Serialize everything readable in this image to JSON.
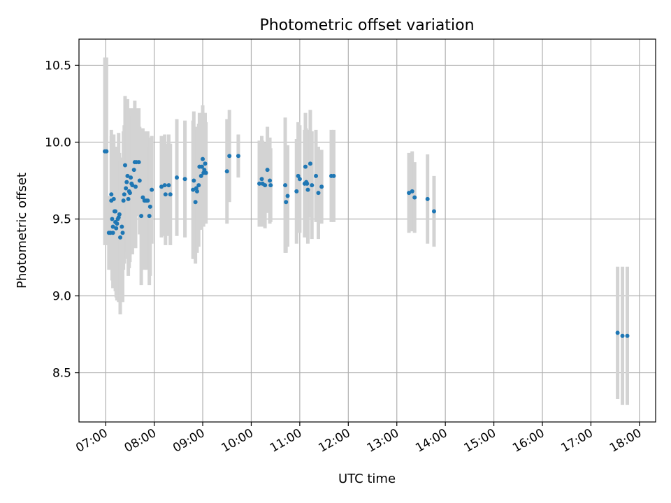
{
  "chart_data": {
    "type": "scatter",
    "title": "Photometric offset variation",
    "xlabel": "UTC time",
    "ylabel": "Photometric offset",
    "x_ticks": [
      "07:00",
      "08:00",
      "09:00",
      "10:00",
      "11:00",
      "12:00",
      "13:00",
      "14:00",
      "15:00",
      "16:00",
      "17:00",
      "18:00"
    ],
    "y_ticks": [
      "8.5",
      "9.0",
      "9.5",
      "10.0",
      "10.5"
    ],
    "xlim": [
      "06:27",
      "18:20"
    ],
    "ylim": [
      8.18,
      10.67
    ],
    "grid": true,
    "colors": {
      "points": "#1f77b4",
      "errorbars": "#d3d3d3",
      "grid": "#b0b0b0"
    },
    "points": [
      {
        "x": "06:59",
        "y": 9.94,
        "err": 0.61
      },
      {
        "x": "07:01",
        "y": 9.94,
        "err": 0.61
      },
      {
        "x": "07:04",
        "y": 9.41,
        "err": 0.24
      },
      {
        "x": "07:06",
        "y": 9.41,
        "err": 0.24
      },
      {
        "x": "07:07",
        "y": 9.62,
        "err": 0.42
      },
      {
        "x": "07:07",
        "y": 9.66,
        "err": 0.42
      },
      {
        "x": "07:08",
        "y": 9.5,
        "err": 0.4
      },
      {
        "x": "07:09",
        "y": 9.45,
        "err": 0.4
      },
      {
        "x": "07:09",
        "y": 9.41,
        "err": 0.3
      },
      {
        "x": "07:10",
        "y": 9.63,
        "err": 0.42
      },
      {
        "x": "07:11",
        "y": 9.55,
        "err": 0.42
      },
      {
        "x": "07:12",
        "y": 9.55,
        "err": 0.36
      },
      {
        "x": "07:12",
        "y": 9.48,
        "err": 0.45
      },
      {
        "x": "07:13",
        "y": 9.44,
        "err": 0.45
      },
      {
        "x": "07:14",
        "y": 9.47,
        "err": 0.5
      },
      {
        "x": "07:15",
        "y": 9.5,
        "err": 0.45
      },
      {
        "x": "07:16",
        "y": 9.51,
        "err": 0.55
      },
      {
        "x": "07:17",
        "y": 9.53,
        "err": 0.4
      },
      {
        "x": "07:18",
        "y": 9.38,
        "err": 0.5
      },
      {
        "x": "07:20",
        "y": 9.45,
        "err": 0.45
      },
      {
        "x": "07:21",
        "y": 9.41,
        "err": 0.45
      },
      {
        "x": "07:22",
        "y": 9.62,
        "err": 0.45
      },
      {
        "x": "07:23",
        "y": 9.66,
        "err": 0.45
      },
      {
        "x": "07:24",
        "y": 9.85,
        "err": 0.45
      },
      {
        "x": "07:25",
        "y": 9.7,
        "err": 0.45
      },
      {
        "x": "07:26",
        "y": 9.74,
        "err": 0.5
      },
      {
        "x": "07:27",
        "y": 9.78,
        "err": 0.5
      },
      {
        "x": "07:28",
        "y": 9.63,
        "err": 0.5
      },
      {
        "x": "07:29",
        "y": 9.68,
        "err": 0.5
      },
      {
        "x": "07:30",
        "y": 9.67,
        "err": 0.45
      },
      {
        "x": "07:31",
        "y": 9.77,
        "err": 0.45
      },
      {
        "x": "07:32",
        "y": 9.73,
        "err": 0.45
      },
      {
        "x": "07:33",
        "y": 9.72,
        "err": 0.45
      },
      {
        "x": "07:35",
        "y": 9.82,
        "err": 0.4
      },
      {
        "x": "07:36",
        "y": 9.87,
        "err": 0.4
      },
      {
        "x": "07:37",
        "y": 9.71,
        "err": 0.4
      },
      {
        "x": "07:38",
        "y": 9.87,
        "err": 0.35
      },
      {
        "x": "07:41",
        "y": 9.87,
        "err": 0.35
      },
      {
        "x": "07:42",
        "y": 9.75,
        "err": 0.35
      },
      {
        "x": "07:44",
        "y": 9.52,
        "err": 0.45
      },
      {
        "x": "07:46",
        "y": 9.64,
        "err": 0.45
      },
      {
        "x": "07:48",
        "y": 9.62,
        "err": 0.45
      },
      {
        "x": "07:50",
        "y": 9.62,
        "err": 0.45
      },
      {
        "x": "07:52",
        "y": 9.62,
        "err": 0.45
      },
      {
        "x": "07:54",
        "y": 9.52,
        "err": 0.45
      },
      {
        "x": "07:55",
        "y": 9.58,
        "err": 0.45
      },
      {
        "x": "07:57",
        "y": 9.69,
        "err": 0.35
      },
      {
        "x": "08:09",
        "y": 9.71,
        "err": 0.33
      },
      {
        "x": "08:13",
        "y": 9.72,
        "err": 0.33
      },
      {
        "x": "08:14",
        "y": 9.66,
        "err": 0.33
      },
      {
        "x": "08:18",
        "y": 9.72,
        "err": 0.33
      },
      {
        "x": "08:20",
        "y": 9.66,
        "err": 0.33
      },
      {
        "x": "08:28",
        "y": 9.77,
        "err": 0.38
      },
      {
        "x": "08:38",
        "y": 9.76,
        "err": 0.38
      },
      {
        "x": "08:48",
        "y": 9.69,
        "err": 0.45
      },
      {
        "x": "08:49",
        "y": 9.75,
        "err": 0.45
      },
      {
        "x": "08:51",
        "y": 9.61,
        "err": 0.4
      },
      {
        "x": "08:52",
        "y": 9.7,
        "err": 0.4
      },
      {
        "x": "08:53",
        "y": 9.68,
        "err": 0.4
      },
      {
        "x": "08:55",
        "y": 9.72,
        "err": 0.4
      },
      {
        "x": "08:56",
        "y": 9.84,
        "err": 0.35
      },
      {
        "x": "08:58",
        "y": 9.78,
        "err": 0.35
      },
      {
        "x": "08:59",
        "y": 9.84,
        "err": 0.35
      },
      {
        "x": "09:00",
        "y": 9.89,
        "err": 0.35
      },
      {
        "x": "09:01",
        "y": 9.8,
        "err": 0.35
      },
      {
        "x": "09:02",
        "y": 9.82,
        "err": 0.35
      },
      {
        "x": "09:03",
        "y": 9.86,
        "err": 0.33
      },
      {
        "x": "09:04",
        "y": 9.8,
        "err": 0.33
      },
      {
        "x": "09:30",
        "y": 9.81,
        "err": 0.34
      },
      {
        "x": "09:33",
        "y": 9.91,
        "err": 0.3
      },
      {
        "x": "09:44",
        "y": 9.91,
        "err": 0.14
      },
      {
        "x": "10:10",
        "y": 9.73,
        "err": 0.28
      },
      {
        "x": "10:13",
        "y": 9.76,
        "err": 0.28
      },
      {
        "x": "10:14",
        "y": 9.73,
        "err": 0.28
      },
      {
        "x": "10:17",
        "y": 9.72,
        "err": 0.28
      },
      {
        "x": "10:20",
        "y": 9.82,
        "err": 0.28
      },
      {
        "x": "10:23",
        "y": 9.75,
        "err": 0.28
      },
      {
        "x": "10:24",
        "y": 9.72,
        "err": 0.24
      },
      {
        "x": "10:42",
        "y": 9.72,
        "err": 0.44
      },
      {
        "x": "10:43",
        "y": 9.61,
        "err": 0.33
      },
      {
        "x": "10:45",
        "y": 9.65,
        "err": 0.33
      },
      {
        "x": "10:56",
        "y": 9.68,
        "err": 0.34
      },
      {
        "x": "10:58",
        "y": 9.78,
        "err": 0.35
      },
      {
        "x": "11:00",
        "y": 9.76,
        "err": 0.35
      },
      {
        "x": "11:06",
        "y": 9.73,
        "err": 0.35
      },
      {
        "x": "11:07",
        "y": 9.84,
        "err": 0.35
      },
      {
        "x": "11:08",
        "y": 9.74,
        "err": 0.35
      },
      {
        "x": "11:09",
        "y": 9.73,
        "err": 0.35
      },
      {
        "x": "11:10",
        "y": 9.69,
        "err": 0.35
      },
      {
        "x": "11:13",
        "y": 9.86,
        "err": 0.35
      },
      {
        "x": "11:15",
        "y": 9.72,
        "err": 0.35
      },
      {
        "x": "11:20",
        "y": 9.78,
        "err": 0.3
      },
      {
        "x": "11:23",
        "y": 9.67,
        "err": 0.3
      },
      {
        "x": "11:27",
        "y": 9.71,
        "err": 0.24
      },
      {
        "x": "11:39",
        "y": 9.78,
        "err": 0.3
      },
      {
        "x": "11:42",
        "y": 9.78,
        "err": 0.3
      },
      {
        "x": "13:15",
        "y": 9.67,
        "err": 0.26
      },
      {
        "x": "13:19",
        "y": 9.68,
        "err": 0.26
      },
      {
        "x": "13:22",
        "y": 9.64,
        "err": 0.23
      },
      {
        "x": "13:38",
        "y": 9.63,
        "err": 0.29
      },
      {
        "x": "13:46",
        "y": 9.55,
        "err": 0.23
      },
      {
        "x": "17:33",
        "y": 8.76,
        "err": 0.43
      },
      {
        "x": "17:39",
        "y": 8.74,
        "err": 0.45
      },
      {
        "x": "17:45",
        "y": 8.74,
        "err": 0.45
      }
    ]
  }
}
